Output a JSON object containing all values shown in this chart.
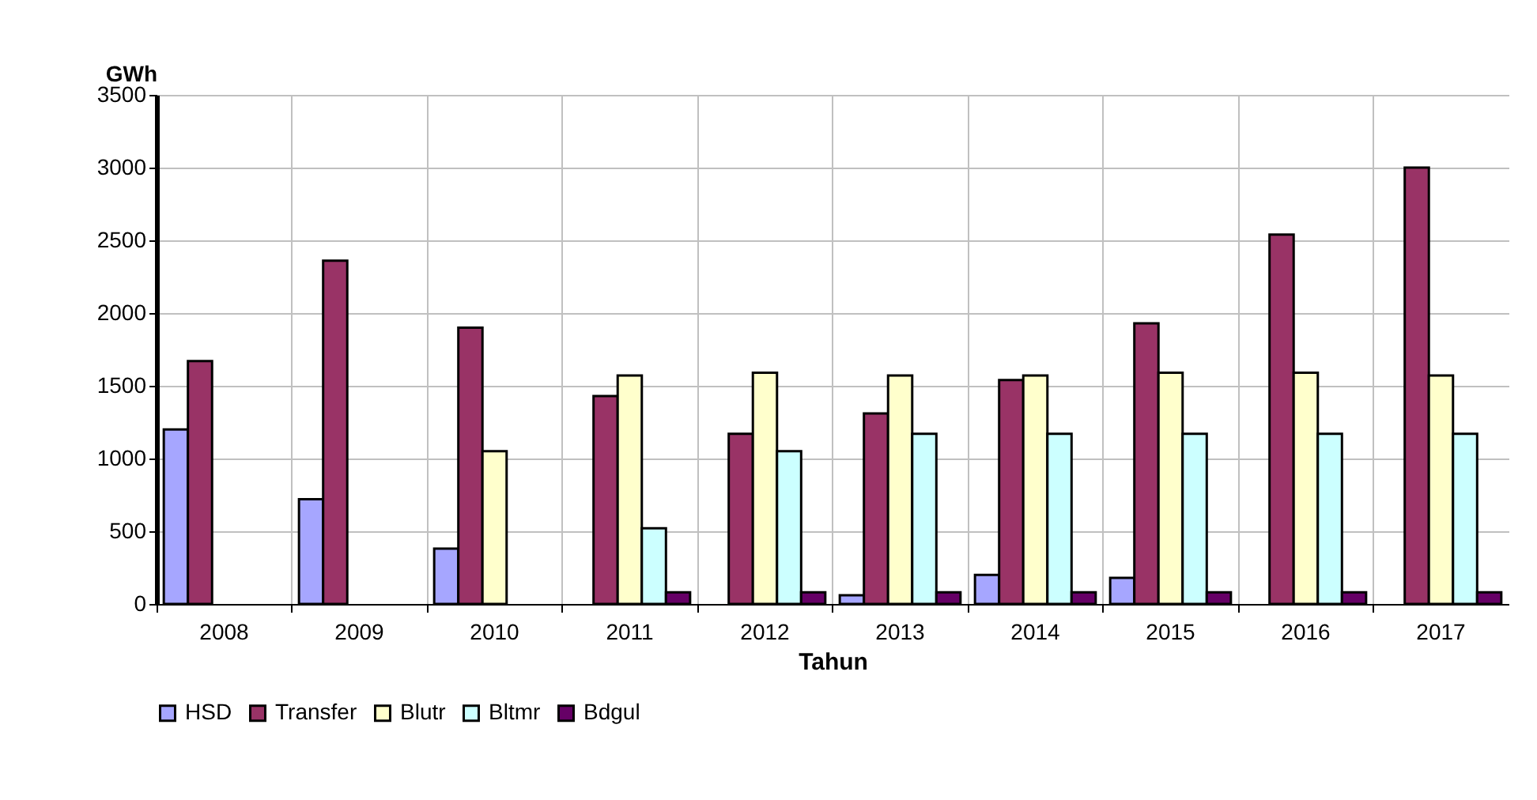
{
  "chart_data": {
    "type": "bar",
    "ylabel": "GWh",
    "xlabel": "Tahun",
    "categories": [
      "2008",
      "2009",
      "2010",
      "2011",
      "2012",
      "2013",
      "2014",
      "2015",
      "2016",
      "2017"
    ],
    "series": [
      {
        "name": "HSD",
        "color": "#a6a6ff",
        "values": [
          1200,
          720,
          380,
          null,
          null,
          60,
          200,
          180,
          null,
          null
        ]
      },
      {
        "name": "Transfer",
        "color": "#993366",
        "values": [
          1670,
          2360,
          1900,
          1430,
          1170,
          1310,
          1540,
          1930,
          2540,
          3000
        ]
      },
      {
        "name": "Blutr",
        "color": "#ffffcc",
        "values": [
          null,
          null,
          1050,
          1570,
          1590,
          1570,
          1570,
          1590,
          1590,
          1570
        ]
      },
      {
        "name": "Bltmr",
        "color": "#ccffff",
        "values": [
          null,
          null,
          null,
          520,
          1050,
          1170,
          1170,
          1170,
          1170,
          1170
        ]
      },
      {
        "name": "Bdgul",
        "color": "#660066",
        "values": [
          null,
          null,
          null,
          80,
          80,
          80,
          80,
          80,
          80,
          80
        ]
      }
    ],
    "ylim": [
      0,
      3500
    ],
    "yticks": [
      0,
      500,
      1000,
      1500,
      2000,
      2500,
      3000,
      3500
    ],
    "grid": true,
    "legend": "bottom left"
  }
}
